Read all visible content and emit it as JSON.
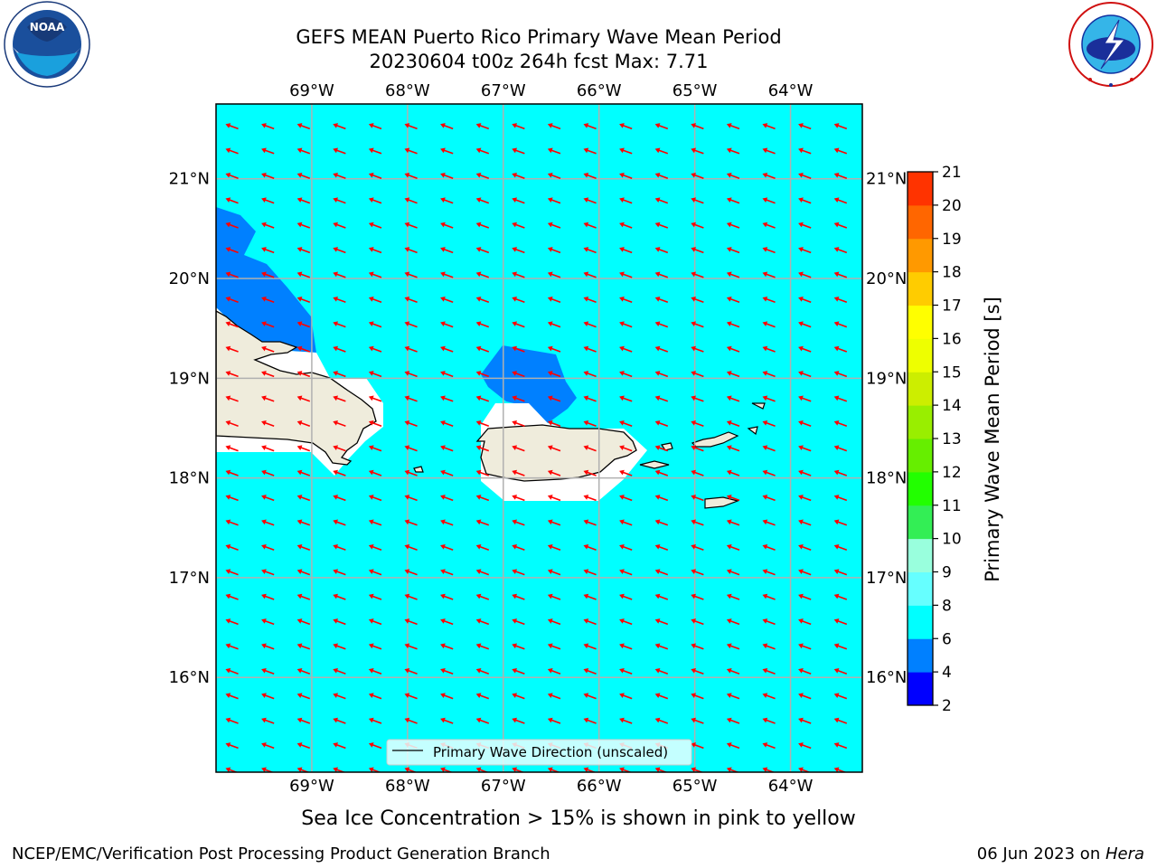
{
  "title": {
    "line1": "GEFS MEAN Puerto Rico Primary Wave Mean Period",
    "line2": "20230604 t00z 264h fcst   Max: 7.71"
  },
  "logos": {
    "left": {
      "name": "noaa-logo",
      "text": "NOAA",
      "ring_text": "NATIONAL OCEANIC AND ATMOSPHERIC ADMINISTRATION · U.S. DEPARTMENT OF COMMERCE"
    },
    "right": {
      "name": "national-weather-service-logo",
      "ring_text": "NATIONAL WEATHER SERVICE"
    }
  },
  "map": {
    "extent": {
      "lon": [
        -70.0,
        -63.25
      ],
      "lat": [
        15.05,
        21.75
      ]
    },
    "lon_ticks": [
      {
        "value": -69,
        "label": "69°W"
      },
      {
        "value": -68,
        "label": "68°W"
      },
      {
        "value": -67,
        "label": "67°W"
      },
      {
        "value": -66,
        "label": "66°W"
      },
      {
        "value": -65,
        "label": "65°W"
      },
      {
        "value": -64,
        "label": "64°W"
      }
    ],
    "lat_ticks": [
      {
        "value": 21,
        "label": "21°N"
      },
      {
        "value": 20,
        "label": "20°N"
      },
      {
        "value": 19,
        "label": "19°N"
      },
      {
        "value": 18,
        "label": "18°N"
      },
      {
        "value": 17,
        "label": "17°N"
      },
      {
        "value": 16,
        "label": "16°N"
      }
    ],
    "background_fill": "#00ffff",
    "shorter_period_fill": "#0080ff",
    "land_fill": "#efecdc",
    "gridlines": true,
    "wave_direction_arrows": {
      "color": "#ff0000",
      "heading": "WNW",
      "scaled": false
    },
    "legend": {
      "label": "Primary Wave Direction (unscaled)",
      "placement": "bottom-center"
    },
    "regions_shorter_period": [
      "northwest corner near Hispaniola",
      "Mona Passage north of Puerto Rico"
    ]
  },
  "colorbar": {
    "label": "Primary Wave Mean Period [s]",
    "ticks": [
      "2",
      "4",
      "6",
      "8",
      "9",
      "10",
      "11",
      "12",
      "13",
      "14",
      "15",
      "16",
      "17",
      "18",
      "19",
      "20",
      "21"
    ],
    "colors": [
      "#0000ff",
      "#0080ff",
      "#00ffff",
      "#66ffff",
      "#99ffdd",
      "#33ee55",
      "#22ff00",
      "#66ee00",
      "#99ee00",
      "#ccee00",
      "#eeff00",
      "#ffff00",
      "#ffcc00",
      "#ff9900",
      "#ff6600",
      "#ff3300"
    ]
  },
  "note": "Sea Ice Concentration > 15% is shown in pink to yellow",
  "footer": {
    "left": "NCEP/EMC/Verification Post Processing Product Generation Branch",
    "right_prefix": "06 Jun 2023 on ",
    "right_host": "Hera"
  }
}
